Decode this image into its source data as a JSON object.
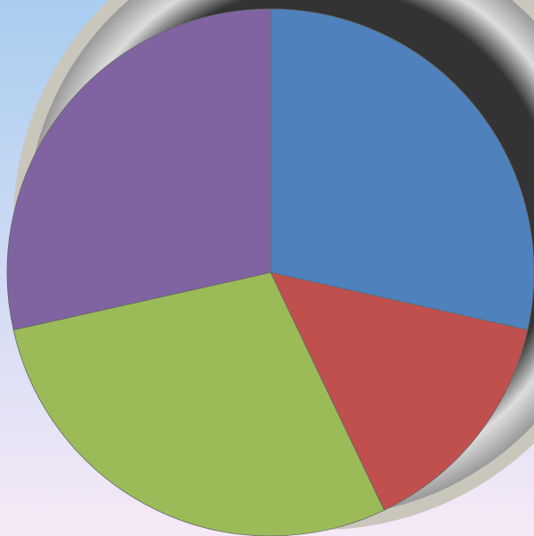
{
  "chart_data": {
    "type": "pie",
    "categories": [
      null,
      null,
      null,
      null
    ],
    "values": [
      28.5,
      14.4,
      28.6,
      28.5
    ],
    "colors": [
      "#4f81bd",
      "#c0504d",
      "#9bbb59",
      "#8064a2"
    ]
  }
}
